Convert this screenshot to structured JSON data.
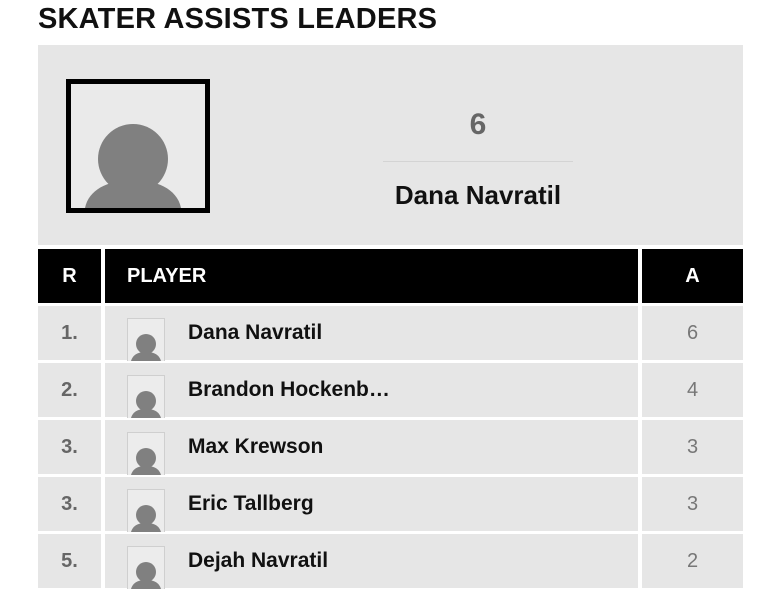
{
  "title": "SKATER ASSISTS LEADERS",
  "leader": {
    "value": "6",
    "name": "Dana Navratil",
    "photo_icon": "person-silhouette-icon"
  },
  "table": {
    "headers": {
      "rank": "R",
      "player": "PLAYER",
      "assists": "A"
    },
    "rows": [
      {
        "rank": "1.",
        "player": "Dana Navratil",
        "assists": "6"
      },
      {
        "rank": "2.",
        "player": "Brandon Hockenb…",
        "assists": "4"
      },
      {
        "rank": "3.",
        "player": "Max Krewson",
        "assists": "3"
      },
      {
        "rank": "3.",
        "player": "Eric Tallberg",
        "assists": "3"
      },
      {
        "rank": "5.",
        "player": "Dejah Navratil",
        "assists": "2"
      }
    ]
  },
  "colors": {
    "header_bg": "#000000",
    "row_bg": "#e6e6e6",
    "silhouette": "#808080"
  }
}
